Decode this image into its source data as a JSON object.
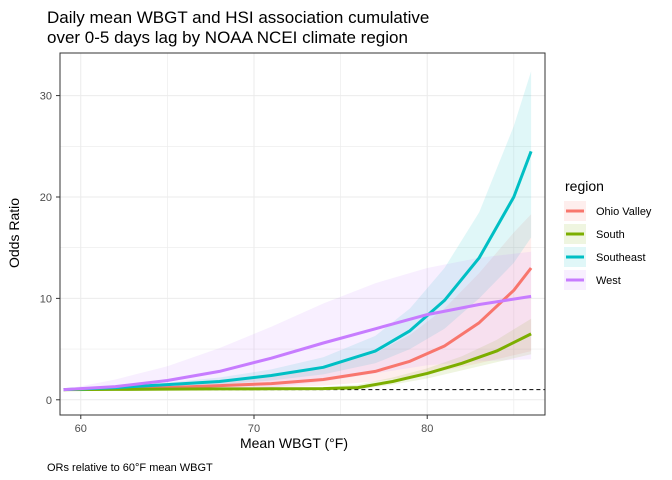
{
  "chart_data": {
    "type": "line",
    "title_lines": [
      "Daily mean WBGT and HSI association cumulative",
      "over 0-5 days lag by NOAA NCEI climate region"
    ],
    "xlabel": "Mean WBGT (°F)",
    "ylabel": "Odds Ratio",
    "caption": "ORs relative to 60°F mean WBGT",
    "xlim": [
      58.8,
      86.8
    ],
    "ylim": [
      -1.5,
      34.2
    ],
    "x_ticks": [
      60,
      70,
      80
    ],
    "y_ticks": [
      0,
      10,
      20,
      30
    ],
    "grid": true,
    "reference_line": 1,
    "legend": {
      "title": "region",
      "position": "right"
    },
    "series": [
      {
        "name": "Ohio Valley",
        "color": "#F8766D",
        "x": [
          59,
          62,
          65,
          68,
          71,
          74,
          77,
          79,
          81,
          83,
          85,
          86
        ],
        "y": [
          1,
          1.1,
          1.2,
          1.4,
          1.6,
          2.0,
          2.8,
          3.8,
          5.3,
          7.6,
          10.8,
          13.0
        ],
        "lower": [
          1,
          1.0,
          1.05,
          1.1,
          1.2,
          1.4,
          1.8,
          2.3,
          2.9,
          3.6,
          4.4,
          4.8
        ],
        "upper": [
          1,
          1.2,
          1.4,
          1.8,
          2.3,
          3.1,
          4.6,
          6.4,
          9.0,
          12.5,
          16.5,
          18.3
        ]
      },
      {
        "name": "South",
        "color": "#7CAE00",
        "x": [
          59,
          62,
          65,
          68,
          71,
          74,
          76,
          78,
          80,
          82,
          84,
          86
        ],
        "y": [
          1,
          1.02,
          1.05,
          1.07,
          1.08,
          1.1,
          1.2,
          1.8,
          2.6,
          3.6,
          4.8,
          6.5
        ],
        "lower": [
          1,
          1.0,
          1.0,
          1.0,
          1.0,
          1.0,
          1.0,
          1.5,
          2.1,
          2.9,
          3.7,
          4.5
        ],
        "upper": [
          1,
          1.05,
          1.1,
          1.15,
          1.2,
          1.25,
          1.5,
          2.2,
          3.1,
          4.3,
          5.9,
          8.0
        ]
      },
      {
        "name": "Southeast",
        "color": "#00BFC4",
        "x": [
          59,
          62,
          65,
          68,
          71,
          74,
          77,
          79,
          81,
          83,
          85,
          86
        ],
        "y": [
          1,
          1.2,
          1.5,
          1.8,
          2.4,
          3.2,
          4.8,
          6.8,
          9.8,
          14.0,
          20.0,
          24.5
        ],
        "lower": [
          1,
          1.1,
          1.3,
          1.5,
          1.9,
          2.5,
          3.6,
          5.0,
          7.0,
          10.0,
          13.5,
          16.0
        ],
        "upper": [
          1,
          1.3,
          1.7,
          2.2,
          3.0,
          4.2,
          6.3,
          9.0,
          13.0,
          18.5,
          27.0,
          32.4
        ]
      },
      {
        "name": "West",
        "color": "#C77CFF",
        "x": [
          59,
          62,
          65,
          68,
          71,
          74,
          77,
          80,
          83,
          86
        ],
        "y": [
          1,
          1.3,
          1.9,
          2.8,
          4.1,
          5.6,
          7.0,
          8.4,
          9.4,
          10.2
        ],
        "lower": [
          1,
          1.0,
          1.0,
          1.0,
          1.2,
          1.8,
          2.6,
          3.4,
          3.8,
          4.0
        ],
        "upper": [
          1,
          2.0,
          3.3,
          5.1,
          7.2,
          9.5,
          11.5,
          13.0,
          14.0,
          14.6
        ]
      }
    ]
  }
}
